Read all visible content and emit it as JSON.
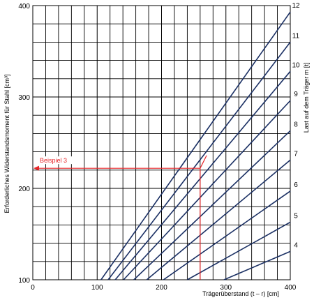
{
  "chart_data": {
    "type": "line",
    "xlabel": "Trägerüberstand (t – r)  [cm]",
    "ylabel": "Erforderliches Widerstandsmoment für Stahl  [cm³]",
    "y2label": "Last auf dem Träger m  [t]",
    "xlim": [
      0,
      400
    ],
    "ylim": [
      100,
      400
    ],
    "x_ticks": [
      "100",
      "200",
      "300",
      "400"
    ],
    "x_origin_label": "0",
    "y_ticks": [
      "100",
      "200",
      "300",
      "400"
    ],
    "grid": true,
    "grid_x_step": 20,
    "grid_y_step": 20,
    "line_color": "#1a2f63",
    "series": [
      {
        "name": "12",
        "x": [
          106,
          400
        ],
        "y": [
          100,
          393
        ]
      },
      {
        "name": "11",
        "x": [
          117,
          400
        ],
        "y": [
          100,
          360
        ]
      },
      {
        "name": "10",
        "x": [
          128,
          400
        ],
        "y": [
          100,
          328
        ]
      },
      {
        "name": "9",
        "x": [
          141,
          400
        ],
        "y": [
          100,
          296
        ]
      },
      {
        "name": "8",
        "x": [
          157,
          400
        ],
        "y": [
          100,
          263
        ]
      },
      {
        "name": "7",
        "x": [
          177,
          400
        ],
        "y": [
          100,
          231
        ]
      },
      {
        "name": "6",
        "x": [
          203,
          400
        ],
        "y": [
          100,
          197
        ]
      },
      {
        "name": "5",
        "x": [
          240,
          400
        ],
        "y": [
          100,
          163
        ]
      },
      {
        "name": "4",
        "x": [
          297,
          400
        ],
        "y": [
          100,
          131
        ]
      }
    ],
    "annotation": {
      "label": "Beispiel 3",
      "color": "#e8262a",
      "x": 260,
      "y": 222,
      "diag_end": [
        270,
        236
      ]
    }
  }
}
